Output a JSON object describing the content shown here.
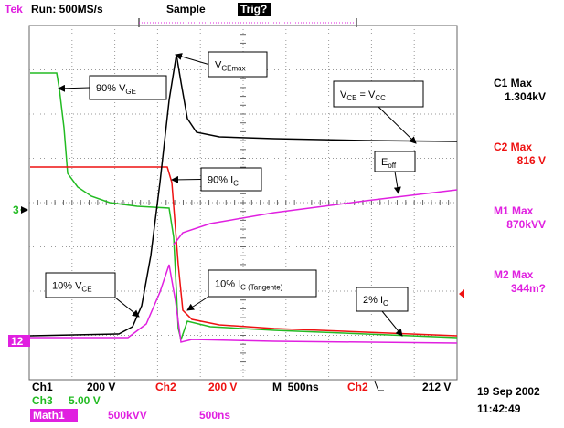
{
  "header": {
    "brand": "Tek",
    "run": "Run: 500MS/s",
    "mode": "Sample",
    "trig": "Trig?"
  },
  "annotations": [
    {
      "main": "V",
      "sub": "CEmax"
    },
    {
      "main": "90% V",
      "sub": "GE"
    },
    {
      "main": "V",
      "sub": "CE",
      "mid": " = V",
      "sub2": "CC"
    },
    {
      "main": "E",
      "sub": "off"
    },
    {
      "main": "90% I",
      "sub": "C"
    },
    {
      "main": "10% V",
      "sub": "CE"
    },
    {
      "main": "10% I",
      "sub": "C (Tangente)"
    },
    {
      "main": "2% I",
      "sub": "C"
    }
  ],
  "readouts": [
    {
      "label": "C1 Max",
      "value": "1.304kV"
    },
    {
      "label": "C2 Max",
      "value": "816 V"
    },
    {
      "label": "M1 Max",
      "value": "870kVV"
    },
    {
      "label": "M2 Max",
      "value": "344m?"
    }
  ],
  "markers": {
    "ch3": "3",
    "ref": "12"
  },
  "footer": {
    "ch1": "Ch1",
    "ch1_scale": "200 V",
    "ch2": "Ch2",
    "ch2_scale": "200 V",
    "timebase": "M  500ns",
    "trig_source": "Ch2",
    "trig_level": "212 V",
    "ch3": "Ch3",
    "ch3_scale": "5.00 V",
    "math": "Math1",
    "math_scale": "500kVV",
    "math_time": "500ns",
    "date": "19 Sep 2002",
    "time": "11:42:49"
  }
}
